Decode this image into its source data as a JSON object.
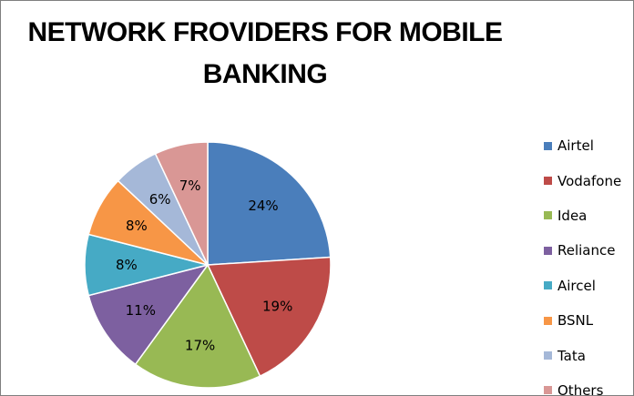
{
  "chart_data": {
    "type": "pie",
    "title": "NETWORK FROVIDERS FOR MOBILE BANKING",
    "categories": [
      "Airtel",
      "Vodafone",
      "Idea",
      "Reliance",
      "Aircel",
      "BSNL",
      "Tata",
      "Others"
    ],
    "values": [
      24,
      19,
      17,
      11,
      8,
      8,
      6,
      7
    ],
    "labels": [
      "24%",
      "19%",
      "17%",
      "11%",
      "8%",
      "8%",
      "6%",
      "7%"
    ],
    "colors": [
      "#4a7ebb",
      "#be4b48",
      "#98b954",
      "#7d60a0",
      "#46aac5",
      "#f79646",
      "#a5b8d8",
      "#d99795"
    ],
    "legend_position": "right"
  }
}
